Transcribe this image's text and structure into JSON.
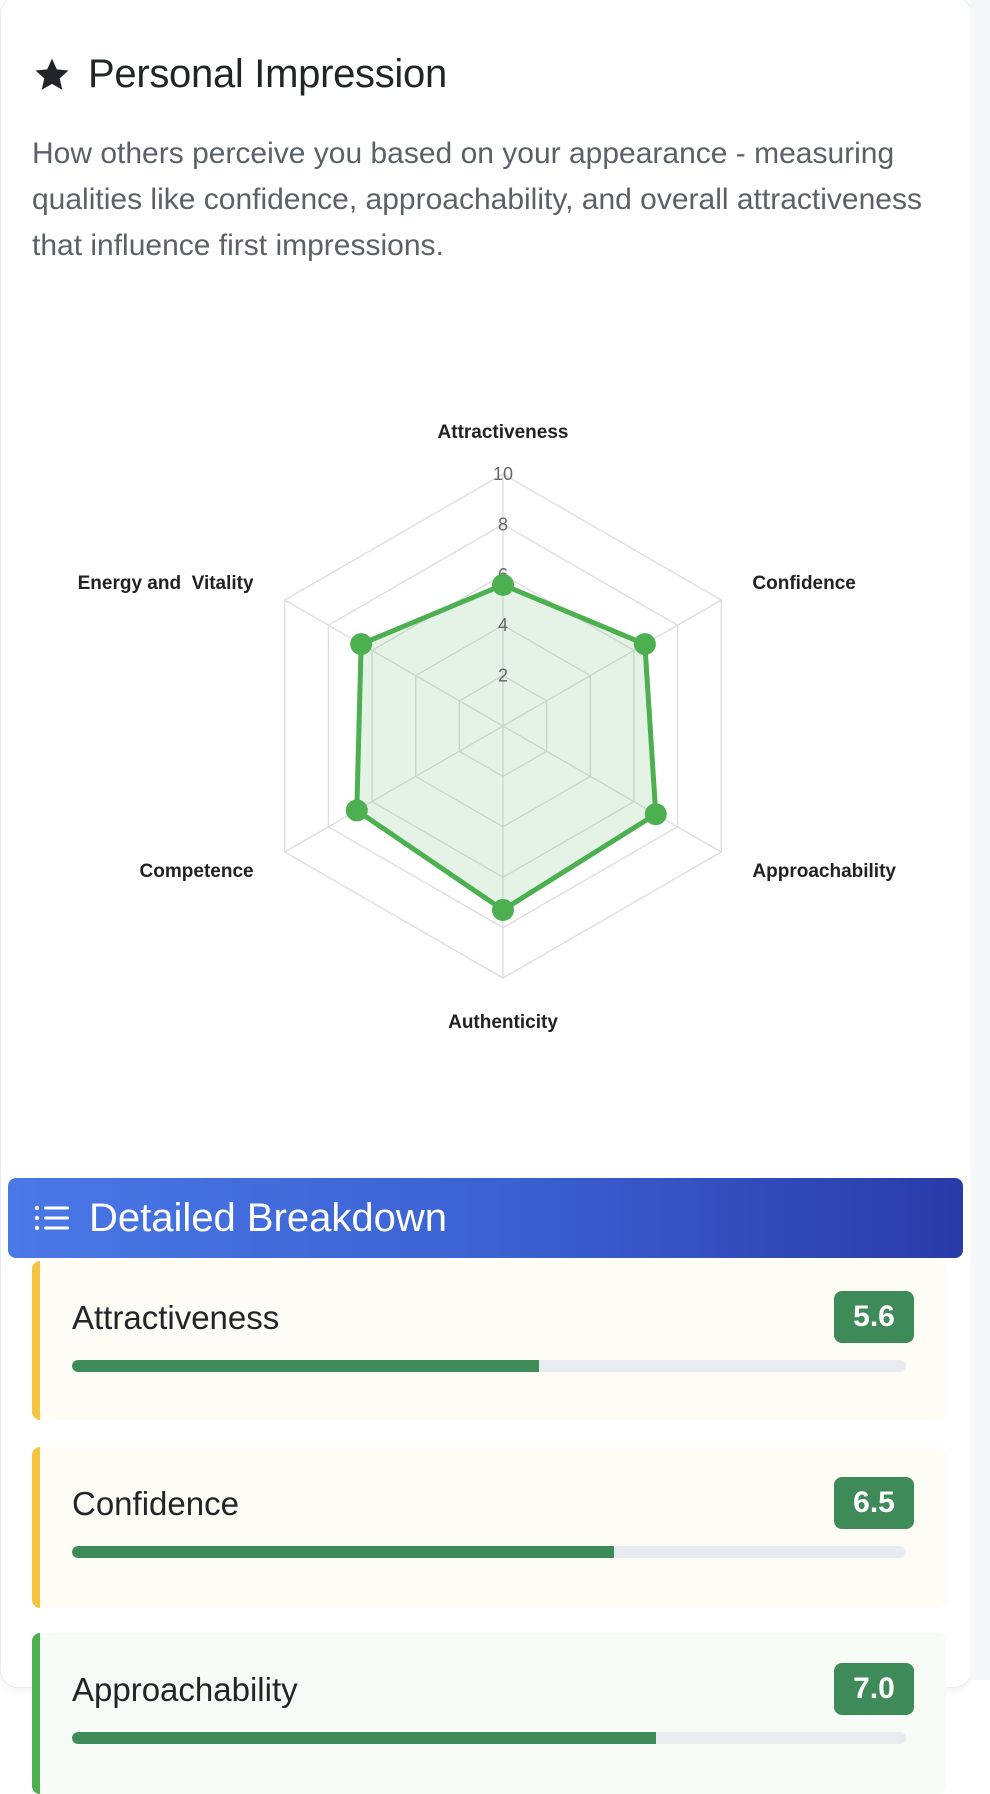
{
  "header": {
    "title": "Personal Impression",
    "icon": "star-icon"
  },
  "description": "How others perceive you based on your appearance - measuring qualities like confidence, approachability, and overall attractiveness that influence first impressions.",
  "chart_data": {
    "type": "radar",
    "categories": [
      "Attractiveness",
      "Confidence",
      "Approachability",
      "Authenticity",
      "Competence",
      "Energy and  Vitality"
    ],
    "series": [
      {
        "values": [
          5.6,
          6.5,
          7.0,
          7.3,
          6.7,
          6.5
        ]
      }
    ],
    "rlim": [
      0,
      10
    ],
    "ticks": [
      2,
      4,
      6,
      8,
      10
    ],
    "colors": {
      "line": "#4caf50",
      "fill": "rgba(76,175,80,0.15)",
      "grid": "#dcdcdc"
    }
  },
  "breakdown": {
    "title": "Detailed Breakdown",
    "icon": "list-icon",
    "items": [
      {
        "label": "Attractiveness",
        "score": "5.6",
        "value": 5.6
      },
      {
        "label": "Confidence",
        "score": "6.5",
        "value": 6.5
      },
      {
        "label": "Approachability",
        "score": "7.0",
        "value": 7.0
      }
    ]
  }
}
